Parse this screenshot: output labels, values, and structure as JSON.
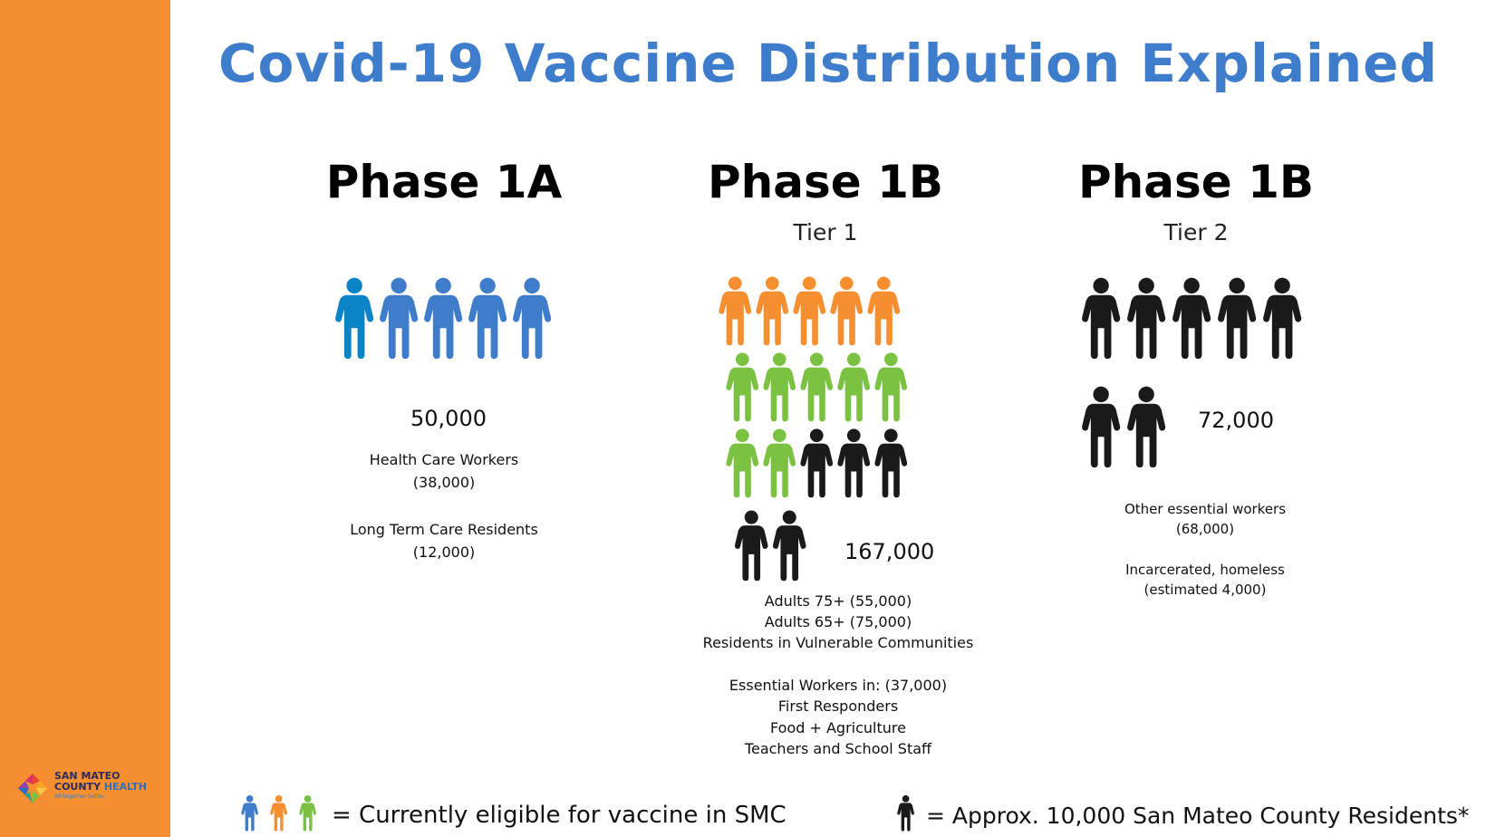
{
  "title": "Covid-19 Vaccine Distribution Explained",
  "colors": {
    "sidebar": "#f58f2f",
    "title": "#3e7ccc",
    "eligible_blue": "#3f7cc9",
    "eligible_blue_dark": "#0a84c6",
    "eligible_orange": "#f58f2f",
    "eligible_green": "#7cc242",
    "not_eligible": "#1a1a1a"
  },
  "logo": {
    "line1": "SAN MATEO",
    "line2a": "COUNTY ",
    "line2b": "HEALTH",
    "tagline": "All together better"
  },
  "phases": [
    {
      "name": "Phase 1A",
      "tier": "",
      "total": "50,000",
      "figure_colors": [
        "eligible_blue_dark",
        "eligible_blue",
        "eligible_blue",
        "eligible_blue",
        "eligible_blue"
      ],
      "groups": [
        {
          "label": "Health Care Workers",
          "count": "(38,000)"
        },
        {
          "label": "Long Term Care Residents",
          "count": "(12,000)"
        }
      ]
    },
    {
      "name": "Phase 1B",
      "tier": "Tier 1",
      "total": "167,000",
      "figure_colors": [
        "eligible_orange",
        "eligible_orange",
        "eligible_orange",
        "eligible_orange",
        "eligible_orange",
        "eligible_green",
        "eligible_green",
        "eligible_green",
        "eligible_green",
        "eligible_green",
        "eligible_green",
        "eligible_green",
        "not_eligible",
        "not_eligible",
        "not_eligible",
        "not_eligible",
        "not_eligible"
      ],
      "lines": [
        "Adults 75+ (55,000)",
        "Adults 65+ (75,000)",
        "Residents in Vulnerable Communities",
        "Essential Workers in: (37,000)",
        "First Responders",
        "Food + Agriculture",
        "Teachers and School Staff"
      ]
    },
    {
      "name": "Phase 1B",
      "tier": "Tier 2",
      "total": "72,000",
      "figure_colors": [
        "not_eligible",
        "not_eligible",
        "not_eligible",
        "not_eligible",
        "not_eligible",
        "not_eligible",
        "not_eligible"
      ],
      "groups": [
        {
          "label": "Other essential workers",
          "count": "(68,000)"
        },
        {
          "label": "Incarcerated, homeless",
          "count": "(estimated 4,000)"
        }
      ]
    }
  ],
  "legend": {
    "eligible_text": "= Currently eligible for vaccine in SMC",
    "scale_text": "= Approx. 10,000 San Mateo County Residents*"
  }
}
